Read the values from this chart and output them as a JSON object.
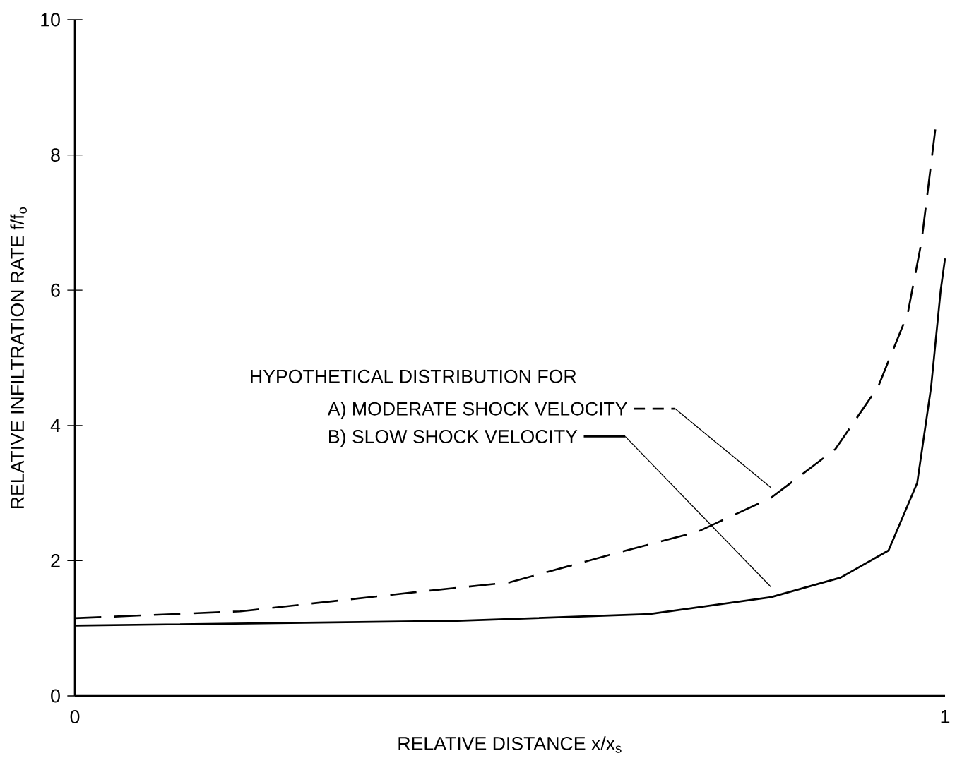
{
  "chart_data": {
    "type": "line",
    "xlabel": "RELATIVE DISTANCE x/x$_{s}$",
    "ylabel": "RELATIVE INFILTRATION RATE f/f$_{o}$",
    "annotations": [
      "HYPOTHETICAL DISTRIBUTION FOR"
    ],
    "xlim": [
      0,
      1
    ],
    "xticks": [
      0,
      1
    ],
    "ylim": [
      0,
      10
    ],
    "yticks": [
      0,
      2,
      4,
      6,
      8,
      10
    ],
    "grid": false,
    "legend": "center",
    "marker": "none",
    "series": [
      {
        "name": "A) MODERATE SHOCK VELOCITY",
        "color": "#000000",
        "line_style": "dashed",
        "x": [
          0,
          0.19,
          0.41,
          0.5,
          0.61,
          0.716,
          0.8,
          0.874,
          0.923,
          0.957,
          0.973,
          0.989
        ],
        "values": [
          1.15,
          1.25,
          1.56,
          1.68,
          2.07,
          2.43,
          2.93,
          3.65,
          4.57,
          5.65,
          6.72,
          8.4
        ]
      },
      {
        "name": "B) SLOW SHOCK VELOCITY",
        "color": "#000000",
        "line_style": "solid",
        "x": [
          0,
          0.44,
          0.66,
          0.8,
          0.88,
          0.935,
          0.968,
          0.984,
          0.995,
          1.0
        ],
        "values": [
          1.04,
          1.11,
          1.21,
          1.46,
          1.75,
          2.15,
          3.15,
          4.57,
          6.0,
          6.47
        ]
      }
    ]
  }
}
